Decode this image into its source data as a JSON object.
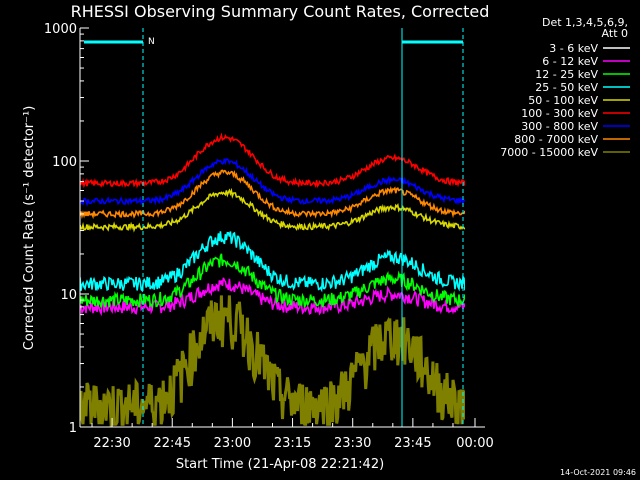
{
  "chart_data": {
    "type": "line",
    "title": "RHESSI Observing Summary Count Rates, Corrected",
    "xlabel": "Start Time (21-Apr-08 22:21:42)",
    "ylabel": "Corrected Count Rate (s⁻¹ detector⁻¹)",
    "y_scale": "log",
    "ylim": [
      1,
      1000
    ],
    "y_ticks": [
      {
        "value": 1,
        "label": "1"
      },
      {
        "value": 10,
        "label": "10"
      },
      {
        "value": 100,
        "label": "100"
      },
      {
        "value": 1000,
        "label": "1000"
      }
    ],
    "xlim_minutes": [
      -8,
      88
    ],
    "x_ticks": [
      {
        "minute": 0,
        "label": "22:30"
      },
      {
        "minute": 15,
        "label": "22:45"
      },
      {
        "minute": 30,
        "label": "23:00"
      },
      {
        "minute": 45,
        "label": "23:15"
      },
      {
        "minute": 60,
        "label": "23:30"
      },
      {
        "minute": 75,
        "label": "23:45"
      },
      {
        "minute": 90,
        "label": "00:00"
      }
    ],
    "legend_header": [
      "Det 1,3,4,5,6,9,",
      "Att 0"
    ],
    "legend_position": "right",
    "footer_date": "14-Oct-2021 09:46",
    "night_marker_label": "N",
    "series": [
      {
        "name": "3 - 6 keV",
        "color": "#ffffff"
      },
      {
        "name": "6 - 12 keV",
        "color": "#ff00ff",
        "base": 8,
        "peak1": 12,
        "peak2": 10
      },
      {
        "name": "12 - 25 keV",
        "color": "#00ff00",
        "base": 9,
        "peak1": 18,
        "peak2": 13
      },
      {
        "name": "25 - 50 keV",
        "color": "#00ffff",
        "base": 12,
        "peak1": 27,
        "peak2": 19
      },
      {
        "name": "50 - 100 keV",
        "color": "#d8d800",
        "base": 32,
        "peak1": 58,
        "peak2": 45
      },
      {
        "name": "100 - 300 keV",
        "color": "#ff0000",
        "base": 68,
        "peak1": 150,
        "peak2": 105
      },
      {
        "name": "300 - 800 keV",
        "color": "#0000ff",
        "base": 50,
        "peak1": 100,
        "peak2": 72
      },
      {
        "name": "800 - 7000 keV",
        "color": "#ff8800",
        "base": 40,
        "peak1": 82,
        "peak2": 60
      },
      {
        "name": "7000 - 15000 keV",
        "color": "#808000",
        "base": 1.5,
        "peak1": 7,
        "peak2": 5
      }
    ],
    "colors": {
      "background": "#000000",
      "axis": "#ffffff",
      "marker": "#00ffff"
    }
  }
}
